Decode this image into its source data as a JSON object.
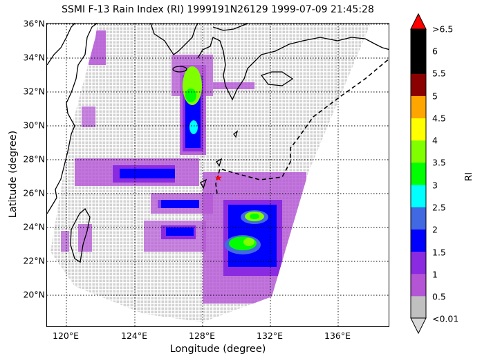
{
  "title": "SSMI F-13 Rain Index (RI) 1999191N26129 1999-07-09 21:45:28",
  "axes": {
    "xlabel": "Longitude (degree)",
    "ylabel": "Latitude (degree)",
    "x_ticks": [
      "120°E",
      "124°E",
      "128°E",
      "132°E",
      "136°E"
    ],
    "y_ticks": [
      "36°N",
      "34°N",
      "32°N",
      "30°N",
      "28°N",
      "26°N",
      "24°N",
      "22°N",
      "20°N"
    ]
  },
  "colorbar": {
    "title": "RI",
    "tick_labels": [
      ">6.5",
      "6",
      "5.5",
      "5",
      "4.5",
      "4",
      "3.5",
      "3",
      "2.5",
      "2",
      "1.5",
      "1",
      "0.5",
      "<0.01"
    ],
    "colors": [
      "#c0c0c0",
      "#b455d6",
      "#8a2be2",
      "#0000ff",
      "#4169e1",
      "#00ffff",
      "#00ff00",
      "#7fff00",
      "#ffff00",
      "#ffa500",
      "#8b0000",
      "#000000",
      "#000000"
    ],
    "over_color": "#ff0000",
    "under_color": "#d9d9d9"
  },
  "storm_marker": {
    "symbol": "★",
    "color": "#ff0000"
  },
  "colors": {
    "swath_bg": "#d3d3d3",
    "track": "#000000"
  }
}
